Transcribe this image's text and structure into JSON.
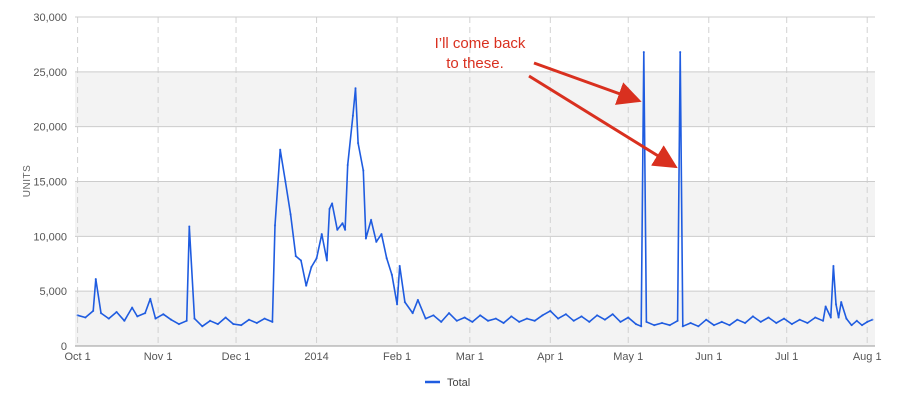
{
  "chart_data": {
    "type": "line",
    "xlabel": "",
    "ylabel": "UNITS",
    "ylim": [
      0,
      30000
    ],
    "y_ticks": [
      "0",
      "5,000",
      "10,000",
      "15,000",
      "20,000",
      "25,000",
      "30,000"
    ],
    "x_range": [
      "2013-09-30",
      "2014-08-04"
    ],
    "x_ticks": [
      {
        "label": "Oct 1",
        "date": "2013-10-01"
      },
      {
        "label": "Nov 1",
        "date": "2013-11-01"
      },
      {
        "label": "Dec 1",
        "date": "2013-12-01"
      },
      {
        "label": "2014",
        "date": "2014-01-01"
      },
      {
        "label": "Feb 1",
        "date": "2014-02-01"
      },
      {
        "label": "Mar 1",
        "date": "2014-03-01"
      },
      {
        "label": "Apr 1",
        "date": "2014-04-01"
      },
      {
        "label": "May 1",
        "date": "2014-05-01"
      },
      {
        "label": "Jun 1",
        "date": "2014-06-01"
      },
      {
        "label": "Jul 1",
        "date": "2014-07-01"
      },
      {
        "label": "Aug 1",
        "date": "2014-08-01"
      }
    ],
    "grid": true,
    "legend_position": "bottom",
    "series": [
      {
        "name": "Total",
        "color": "#1f5ce0",
        "points": [
          [
            "2013-10-01",
            2800
          ],
          [
            "2013-10-04",
            2600
          ],
          [
            "2013-10-07",
            3200
          ],
          [
            "2013-10-08",
            6100
          ],
          [
            "2013-10-10",
            3000
          ],
          [
            "2013-10-13",
            2500
          ],
          [
            "2013-10-16",
            3100
          ],
          [
            "2013-10-19",
            2300
          ],
          [
            "2013-10-22",
            3500
          ],
          [
            "2013-10-24",
            2700
          ],
          [
            "2013-10-27",
            3000
          ],
          [
            "2013-10-29",
            4300
          ],
          [
            "2013-10-31",
            2500
          ],
          [
            "2013-11-03",
            2900
          ],
          [
            "2013-11-06",
            2400
          ],
          [
            "2013-11-09",
            2000
          ],
          [
            "2013-11-12",
            2300
          ],
          [
            "2013-11-13",
            10900
          ],
          [
            "2013-11-15",
            2500
          ],
          [
            "2013-11-18",
            1800
          ],
          [
            "2013-11-21",
            2300
          ],
          [
            "2013-11-24",
            2000
          ],
          [
            "2013-11-27",
            2600
          ],
          [
            "2013-11-30",
            2000
          ],
          [
            "2013-12-03",
            1900
          ],
          [
            "2013-12-06",
            2400
          ],
          [
            "2013-12-09",
            2100
          ],
          [
            "2013-12-12",
            2500
          ],
          [
            "2013-12-15",
            2200
          ],
          [
            "2013-12-16",
            11000
          ],
          [
            "2013-12-18",
            17900
          ],
          [
            "2013-12-20",
            15000
          ],
          [
            "2013-12-22",
            12000
          ],
          [
            "2013-12-24",
            8200
          ],
          [
            "2013-12-26",
            7800
          ],
          [
            "2013-12-28",
            5500
          ],
          [
            "2013-12-30",
            7200
          ],
          [
            "2014-01-01",
            8000
          ],
          [
            "2014-01-03",
            10200
          ],
          [
            "2014-01-05",
            7800
          ],
          [
            "2014-01-06",
            12500
          ],
          [
            "2014-01-07",
            13000
          ],
          [
            "2014-01-09",
            10600
          ],
          [
            "2014-01-11",
            11200
          ],
          [
            "2014-01-12",
            10600
          ],
          [
            "2014-01-13",
            16500
          ],
          [
            "2014-01-15",
            21000
          ],
          [
            "2014-01-16",
            23500
          ],
          [
            "2014-01-17",
            18500
          ],
          [
            "2014-01-19",
            16000
          ],
          [
            "2014-01-20",
            9800
          ],
          [
            "2014-01-22",
            11500
          ],
          [
            "2014-01-24",
            9500
          ],
          [
            "2014-01-26",
            10200
          ],
          [
            "2014-01-28",
            8000
          ],
          [
            "2014-01-30",
            6500
          ],
          [
            "2014-02-01",
            3800
          ],
          [
            "2014-02-02",
            7300
          ],
          [
            "2014-02-04",
            4000
          ],
          [
            "2014-02-07",
            3000
          ],
          [
            "2014-02-09",
            4200
          ],
          [
            "2014-02-12",
            2500
          ],
          [
            "2014-02-15",
            2800
          ],
          [
            "2014-02-18",
            2200
          ],
          [
            "2014-02-21",
            3000
          ],
          [
            "2014-02-24",
            2300
          ],
          [
            "2014-02-27",
            2600
          ],
          [
            "2014-03-02",
            2200
          ],
          [
            "2014-03-05",
            2800
          ],
          [
            "2014-03-08",
            2300
          ],
          [
            "2014-03-11",
            2500
          ],
          [
            "2014-03-14",
            2100
          ],
          [
            "2014-03-17",
            2700
          ],
          [
            "2014-03-20",
            2200
          ],
          [
            "2014-03-23",
            2500
          ],
          [
            "2014-03-26",
            2300
          ],
          [
            "2014-03-29",
            2800
          ],
          [
            "2014-04-01",
            3200
          ],
          [
            "2014-04-04",
            2500
          ],
          [
            "2014-04-07",
            2900
          ],
          [
            "2014-04-10",
            2300
          ],
          [
            "2014-04-13",
            2700
          ],
          [
            "2014-04-16",
            2200
          ],
          [
            "2014-04-19",
            2800
          ],
          [
            "2014-04-22",
            2400
          ],
          [
            "2014-04-25",
            2900
          ],
          [
            "2014-04-28",
            2200
          ],
          [
            "2014-05-01",
            2600
          ],
          [
            "2014-05-04",
            2000
          ],
          [
            "2014-05-06",
            1800
          ],
          [
            "2014-05-07",
            26800
          ],
          [
            "2014-05-08",
            2200
          ],
          [
            "2014-05-11",
            1900
          ],
          [
            "2014-05-14",
            2100
          ],
          [
            "2014-05-17",
            1900
          ],
          [
            "2014-05-20",
            2300
          ],
          [
            "2014-05-21",
            26800
          ],
          [
            "2014-05-22",
            1800
          ],
          [
            "2014-05-25",
            2100
          ],
          [
            "2014-05-28",
            1800
          ],
          [
            "2014-05-31",
            2400
          ],
          [
            "2014-06-03",
            1900
          ],
          [
            "2014-06-06",
            2200
          ],
          [
            "2014-06-09",
            1900
          ],
          [
            "2014-06-12",
            2400
          ],
          [
            "2014-06-15",
            2100
          ],
          [
            "2014-06-18",
            2700
          ],
          [
            "2014-06-21",
            2200
          ],
          [
            "2014-06-24",
            2600
          ],
          [
            "2014-06-27",
            2100
          ],
          [
            "2014-06-30",
            2500
          ],
          [
            "2014-07-03",
            2000
          ],
          [
            "2014-07-06",
            2400
          ],
          [
            "2014-07-09",
            2100
          ],
          [
            "2014-07-12",
            2600
          ],
          [
            "2014-07-15",
            2300
          ],
          [
            "2014-07-16",
            3600
          ],
          [
            "2014-07-18",
            2600
          ],
          [
            "2014-07-19",
            7300
          ],
          [
            "2014-07-20",
            3800
          ],
          [
            "2014-07-21",
            2600
          ],
          [
            "2014-07-22",
            4000
          ],
          [
            "2014-07-24",
            2500
          ],
          [
            "2014-07-26",
            1900
          ],
          [
            "2014-07-28",
            2300
          ],
          [
            "2014-07-30",
            1900
          ],
          [
            "2014-08-01",
            2200
          ],
          [
            "2014-08-03",
            2400
          ]
        ]
      }
    ],
    "annotation": {
      "text": [
        "I’ll come back",
        "to these."
      ],
      "color": "#d9301f",
      "points_to": [
        [
          "2014-05-07",
          22000
        ],
        [
          "2014-05-21",
          16000
        ]
      ]
    }
  }
}
